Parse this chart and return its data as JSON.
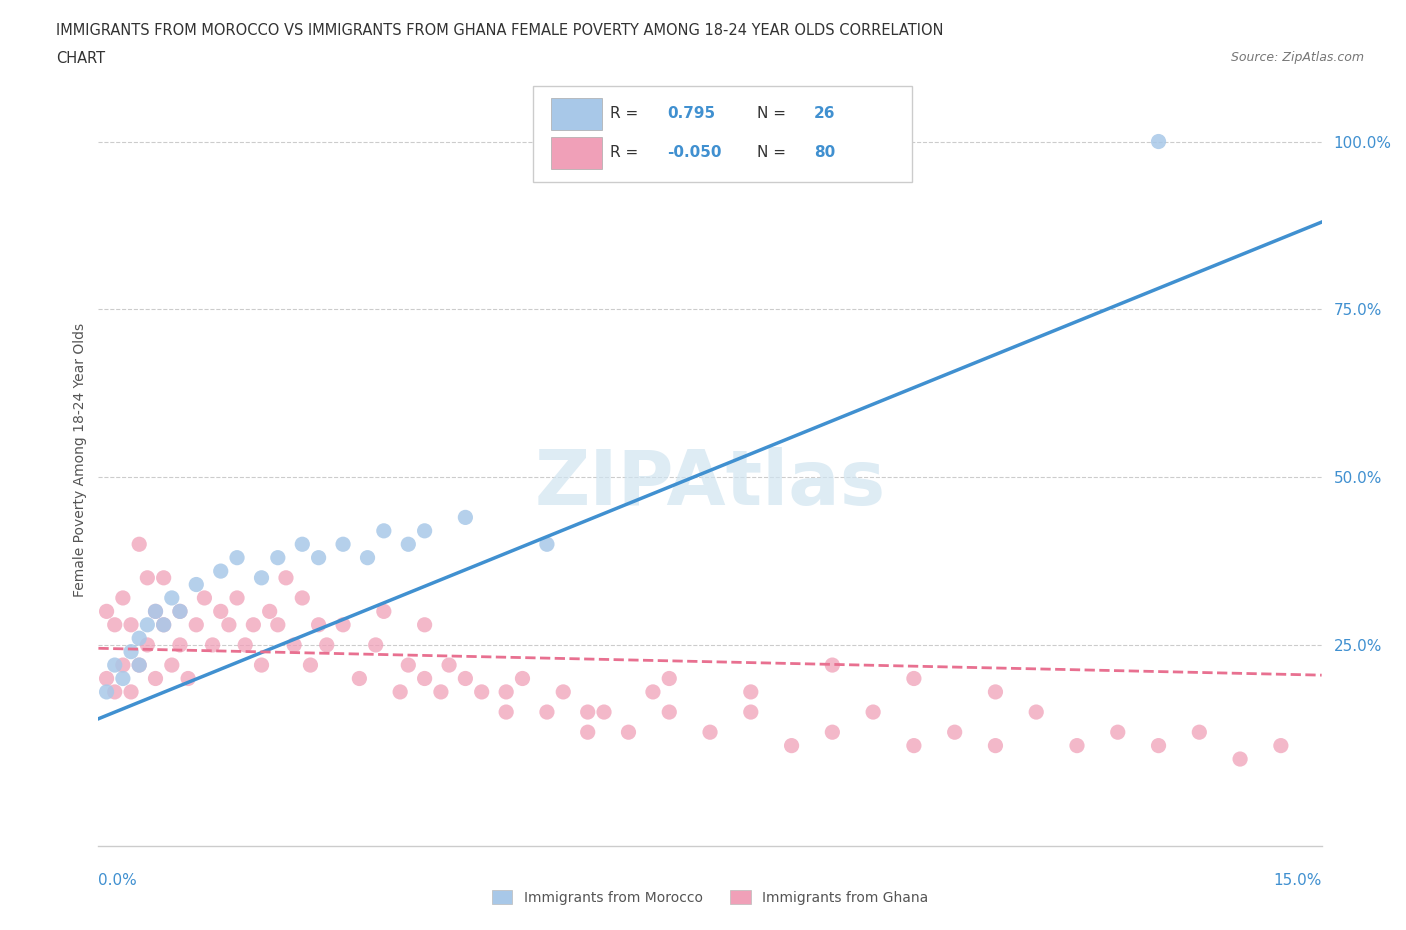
{
  "title_line1": "IMMIGRANTS FROM MOROCCO VS IMMIGRANTS FROM GHANA FEMALE POVERTY AMONG 18-24 YEAR OLDS CORRELATION",
  "title_line2": "CHART",
  "source": "Source: ZipAtlas.com",
  "ylabel": "Female Poverty Among 18-24 Year Olds",
  "yticks_labels": [
    "25.0%",
    "50.0%",
    "75.0%",
    "100.0%"
  ],
  "ytick_vals": [
    0.25,
    0.5,
    0.75,
    1.0
  ],
  "xmin": 0.0,
  "xmax": 0.15,
  "ymin": -0.05,
  "ymax": 1.1,
  "morocco_R": 0.795,
  "morocco_N": 26,
  "ghana_R": -0.05,
  "ghana_N": 80,
  "morocco_color": "#a8c8e8",
  "ghana_color": "#f0a0b8",
  "morocco_line_color": "#4090d0",
  "ghana_line_color": "#e87090",
  "watermark_color": "#d0e4f0",
  "morocco_scatter_x": [
    0.001,
    0.002,
    0.003,
    0.004,
    0.005,
    0.005,
    0.006,
    0.007,
    0.008,
    0.009,
    0.01,
    0.012,
    0.015,
    0.017,
    0.02,
    0.022,
    0.025,
    0.027,
    0.03,
    0.033,
    0.035,
    0.038,
    0.04,
    0.045,
    0.055,
    0.13
  ],
  "morocco_scatter_y": [
    0.18,
    0.22,
    0.2,
    0.24,
    0.26,
    0.22,
    0.28,
    0.3,
    0.28,
    0.32,
    0.3,
    0.34,
    0.36,
    0.38,
    0.35,
    0.38,
    0.4,
    0.38,
    0.4,
    0.38,
    0.42,
    0.4,
    0.42,
    0.44,
    0.4,
    1.0
  ],
  "ghana_scatter_x": [
    0.001,
    0.001,
    0.002,
    0.002,
    0.003,
    0.003,
    0.004,
    0.004,
    0.005,
    0.005,
    0.006,
    0.006,
    0.007,
    0.007,
    0.008,
    0.008,
    0.009,
    0.01,
    0.01,
    0.011,
    0.012,
    0.013,
    0.014,
    0.015,
    0.016,
    0.017,
    0.018,
    0.019,
    0.02,
    0.021,
    0.022,
    0.023,
    0.024,
    0.025,
    0.026,
    0.027,
    0.028,
    0.03,
    0.032,
    0.034,
    0.035,
    0.037,
    0.038,
    0.04,
    0.04,
    0.042,
    0.043,
    0.045,
    0.047,
    0.05,
    0.052,
    0.055,
    0.057,
    0.06,
    0.062,
    0.065,
    0.068,
    0.07,
    0.075,
    0.08,
    0.085,
    0.09,
    0.095,
    0.1,
    0.105,
    0.11,
    0.115,
    0.12,
    0.125,
    0.13,
    0.135,
    0.14,
    0.145,
    0.05,
    0.06,
    0.07,
    0.08,
    0.09,
    0.1,
    0.11
  ],
  "ghana_scatter_y": [
    0.2,
    0.3,
    0.18,
    0.28,
    0.22,
    0.32,
    0.18,
    0.28,
    0.4,
    0.22,
    0.35,
    0.25,
    0.3,
    0.2,
    0.28,
    0.35,
    0.22,
    0.25,
    0.3,
    0.2,
    0.28,
    0.32,
    0.25,
    0.3,
    0.28,
    0.32,
    0.25,
    0.28,
    0.22,
    0.3,
    0.28,
    0.35,
    0.25,
    0.32,
    0.22,
    0.28,
    0.25,
    0.28,
    0.2,
    0.25,
    0.3,
    0.18,
    0.22,
    0.28,
    0.2,
    0.18,
    0.22,
    0.2,
    0.18,
    0.15,
    0.2,
    0.15,
    0.18,
    0.12,
    0.15,
    0.12,
    0.18,
    0.15,
    0.12,
    0.15,
    0.1,
    0.12,
    0.15,
    0.1,
    0.12,
    0.1,
    0.15,
    0.1,
    0.12,
    0.1,
    0.12,
    0.08,
    0.1,
    0.18,
    0.15,
    0.2,
    0.18,
    0.22,
    0.2,
    0.18
  ],
  "morocco_line_x": [
    0.0,
    0.15
  ],
  "morocco_line_y": [
    0.14,
    0.88
  ],
  "ghana_line_x": [
    0.0,
    0.15
  ],
  "ghana_line_y": [
    0.245,
    0.205
  ]
}
